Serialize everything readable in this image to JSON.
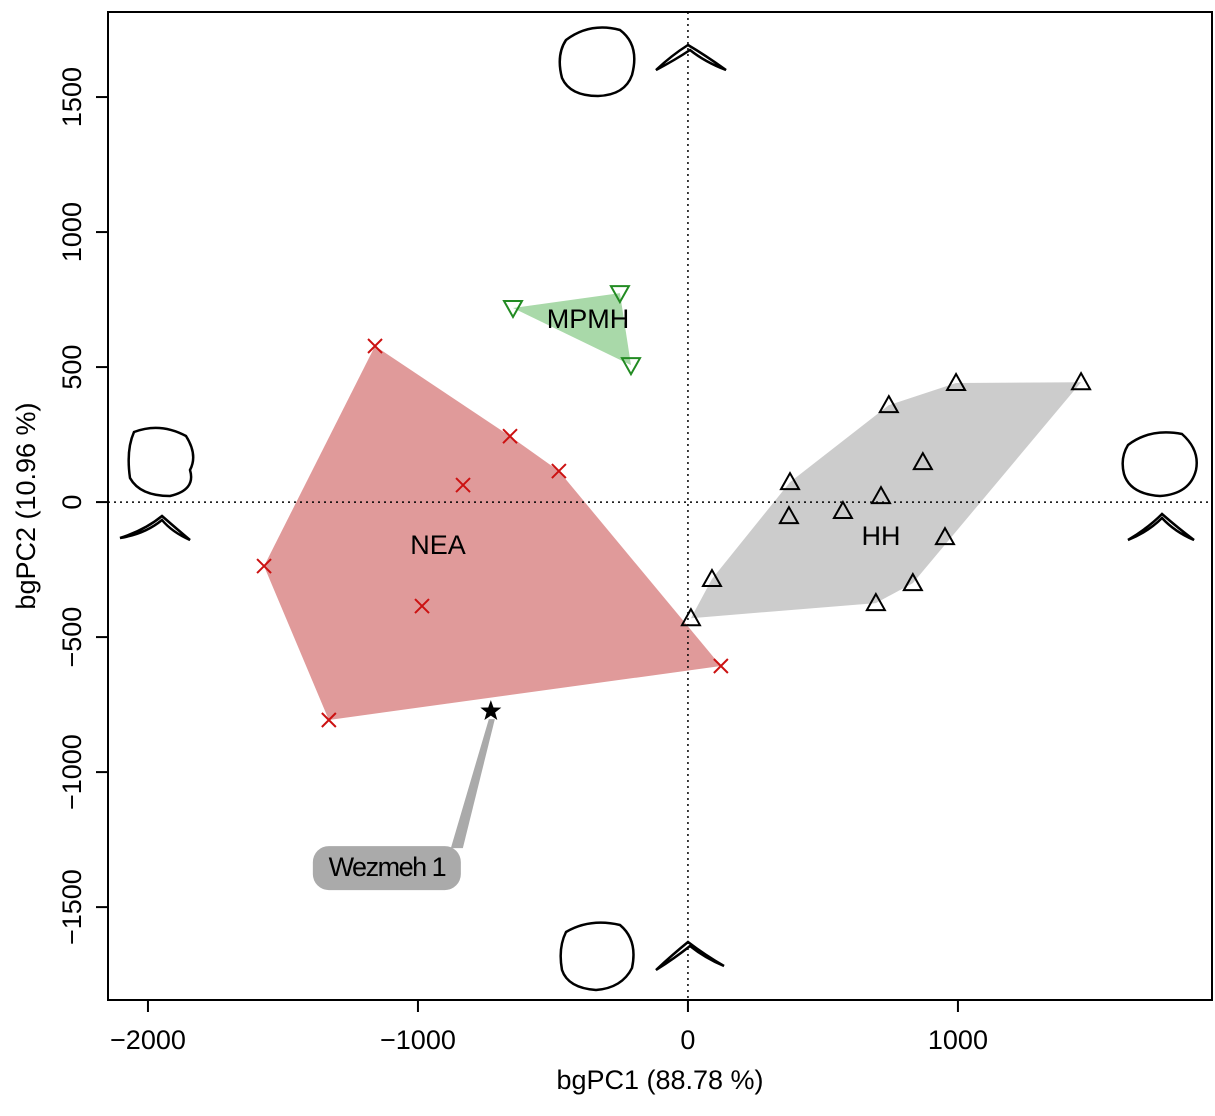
{
  "chart_data": {
    "type": "scatter",
    "xlabel": "bgPC1 (88.78 %)",
    "ylabel": "bgPC2 (10.96 %)",
    "xlim": [
      -2148,
      1941
    ],
    "ylim": [
      -1844,
      1815
    ],
    "xticks": [
      {
        "value": -2000,
        "label": "−2000"
      },
      {
        "value": -1000,
        "label": "−1000"
      },
      0,
      1000
    ],
    "yticks": [
      {
        "value": -1500,
        "label": "−1500"
      },
      {
        "value": -1000,
        "label": "−1000"
      },
      {
        "value": -500,
        "label": "−500"
      },
      0,
      500,
      1000,
      1500
    ],
    "zero_lines": true,
    "series": [
      {
        "name": "NEA",
        "marker": "x",
        "color": "#cc1111",
        "fill": "#e09a9a",
        "x": [
          -1159,
          -659,
          -478,
          -833,
          -1570,
          -985,
          -1330,
          122
        ],
        "values": [
          578,
          244,
          115,
          63,
          -237,
          -385,
          -807,
          -607
        ]
      },
      {
        "name": "MPMH",
        "marker": "triangle-down",
        "color": "#228b22",
        "fill": "#a9d9a9",
        "x": [
          -648,
          -252,
          -211
        ],
        "values": [
          719,
          774,
          507
        ]
      },
      {
        "name": "HH",
        "marker": "triangle",
        "color": "#000000",
        "fill": "#cccccc",
        "x": [
          1456,
          993,
          744,
          870,
          378,
          715,
          574,
          374,
          952,
          89,
          833,
          696,
          11
        ],
        "values": [
          444,
          441,
          359,
          148,
          74,
          22,
          -33,
          -52,
          -130,
          -285,
          -300,
          -374,
          -430
        ]
      },
      {
        "name": "Wezmeh 1",
        "marker": "star",
        "color": "#000000",
        "fill": "#aaaaaa",
        "x": [
          -730
        ],
        "values": [
          -774
        ]
      }
    ]
  }
}
